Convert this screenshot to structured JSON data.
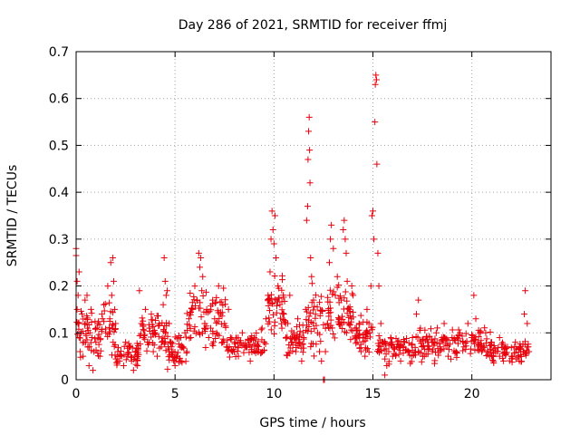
{
  "chart_data": {
    "type": "scatter",
    "title": "Day 286 of 2021, SRMTID for receiver ffmj",
    "xlabel": "GPS time / hours",
    "ylabel": "SRMTID / TECUs",
    "xlim": [
      0,
      24
    ],
    "ylim": [
      0,
      0.7
    ],
    "x_ticks": [
      0,
      5,
      10,
      15,
      20
    ],
    "x_tick_labels": [
      "0",
      "5",
      "10",
      "15",
      "20"
    ],
    "y_ticks": [
      0,
      0.1,
      0.2,
      0.3,
      0.4,
      0.5,
      0.6,
      0.7
    ],
    "y_tick_labels": [
      "0",
      "0.1",
      "0.2",
      "0.3",
      "0.4",
      "0.5",
      "0.6",
      "0.7"
    ],
    "grid": true,
    "marker": "plus",
    "color": "#e8000b",
    "series": [
      {
        "name": "SRMTID",
        "points": [
          [
            0.0,
            0.28
          ],
          [
            0.0,
            0.265
          ],
          [
            0.05,
            0.21
          ],
          [
            0.05,
            0.15
          ],
          [
            0.1,
            0.18
          ],
          [
            0.1,
            0.12
          ],
          [
            0.15,
            0.09
          ],
          [
            0.15,
            0.23
          ],
          [
            0.2,
            0.06
          ],
          [
            0.25,
            0.1
          ],
          [
            0.3,
            0.14
          ],
          [
            0.35,
            0.05
          ],
          [
            0.4,
            0.08
          ],
          [
            0.45,
            0.17
          ],
          [
            0.5,
            0.12
          ],
          [
            0.55,
            0.18
          ],
          [
            0.6,
            0.07
          ],
          [
            0.65,
            0.03
          ],
          [
            0.7,
            0.1
          ],
          [
            0.75,
            0.15
          ],
          [
            0.8,
            0.09
          ],
          [
            0.85,
            0.02
          ],
          [
            0.9,
            0.06
          ],
          [
            1.0,
            0.08
          ],
          [
            1.1,
            0.12
          ],
          [
            1.2,
            0.05
          ],
          [
            1.3,
            0.14
          ],
          [
            1.4,
            0.16
          ],
          [
            1.5,
            0.1
          ],
          [
            1.6,
            0.2
          ],
          [
            1.7,
            0.13
          ],
          [
            1.75,
            0.25
          ],
          [
            1.8,
            0.18
          ],
          [
            1.85,
            0.26
          ],
          [
            1.9,
            0.21
          ],
          [
            1.95,
            0.15
          ],
          [
            2.0,
            0.12
          ],
          [
            2.1,
            0.06
          ],
          [
            2.2,
            0.04
          ],
          [
            2.3,
            0.05
          ],
          [
            2.4,
            0.03
          ],
          [
            2.5,
            0.08
          ],
          [
            2.6,
            0.05
          ],
          [
            2.7,
            0.07
          ],
          [
            2.8,
            0.04
          ],
          [
            2.9,
            0.02
          ],
          [
            3.0,
            0.06
          ],
          [
            3.1,
            0.03
          ],
          [
            3.2,
            0.19
          ],
          [
            3.3,
            0.12
          ],
          [
            3.4,
            0.09
          ],
          [
            3.5,
            0.15
          ],
          [
            3.6,
            0.08
          ],
          [
            3.7,
            0.11
          ],
          [
            3.8,
            0.14
          ],
          [
            3.9,
            0.06
          ],
          [
            4.0,
            0.1
          ],
          [
            4.1,
            0.05
          ],
          [
            4.2,
            0.12
          ],
          [
            4.3,
            0.07
          ],
          [
            4.4,
            0.16
          ],
          [
            4.45,
            0.26
          ],
          [
            4.5,
            0.21
          ],
          [
            4.55,
            0.18
          ],
          [
            4.6,
            0.19
          ],
          [
            4.7,
            0.12
          ],
          [
            4.8,
            0.08
          ],
          [
            4.9,
            0.06
          ],
          [
            5.0,
            0.03
          ],
          [
            5.1,
            0.05
          ],
          [
            5.2,
            0.09
          ],
          [
            5.3,
            0.04
          ],
          [
            5.4,
            0.07
          ],
          [
            5.5,
            0.1
          ],
          [
            5.6,
            0.06
          ],
          [
            5.7,
            0.13
          ],
          [
            5.8,
            0.09
          ],
          [
            5.9,
            0.15
          ],
          [
            6.0,
            0.2
          ],
          [
            6.1,
            0.17
          ],
          [
            6.2,
            0.27
          ],
          [
            6.25,
            0.24
          ],
          [
            6.3,
            0.26
          ],
          [
            6.35,
            0.19
          ],
          [
            6.4,
            0.22
          ],
          [
            6.5,
            0.12
          ],
          [
            6.6,
            0.15
          ],
          [
            6.7,
            0.09
          ],
          [
            6.8,
            0.11
          ],
          [
            6.9,
            0.17
          ],
          [
            7.0,
            0.13
          ],
          [
            7.1,
            0.1
          ],
          [
            7.2,
            0.2
          ],
          [
            7.3,
            0.14
          ],
          [
            7.4,
            0.08
          ],
          [
            7.5,
            0.12
          ],
          [
            7.6,
            0.07
          ],
          [
            7.7,
            0.15
          ],
          [
            7.8,
            0.09
          ],
          [
            7.9,
            0.06
          ],
          [
            8.0,
            0.08
          ],
          [
            8.2,
            0.05
          ],
          [
            8.4,
            0.1
          ],
          [
            8.6,
            0.07
          ],
          [
            8.8,
            0.04
          ],
          [
            9.0,
            0.09
          ],
          [
            9.2,
            0.06
          ],
          [
            9.4,
            0.11
          ],
          [
            9.5,
            0.08
          ],
          [
            9.6,
            0.13
          ],
          [
            9.7,
            0.18
          ],
          [
            9.8,
            0.23
          ],
          [
            9.85,
            0.3
          ],
          [
            9.9,
            0.36
          ],
          [
            9.95,
            0.32
          ],
          [
            10.0,
            0.29
          ],
          [
            10.05,
            0.35
          ],
          [
            10.1,
            0.26
          ],
          [
            10.2,
            0.2
          ],
          [
            10.3,
            0.16
          ],
          [
            10.4,
            0.11
          ],
          [
            10.5,
            0.14
          ],
          [
            10.6,
            0.09
          ],
          [
            10.7,
            0.12
          ],
          [
            10.8,
            0.18
          ],
          [
            10.9,
            0.08
          ],
          [
            11.0,
            0.1
          ],
          [
            11.1,
            0.06
          ],
          [
            11.2,
            0.13
          ],
          [
            11.3,
            0.08
          ],
          [
            11.4,
            0.04
          ],
          [
            11.5,
            0.09
          ],
          [
            11.6,
            0.15
          ],
          [
            11.65,
            0.34
          ],
          [
            11.7,
            0.37
          ],
          [
            11.72,
            0.47
          ],
          [
            11.75,
            0.53
          ],
          [
            11.78,
            0.56
          ],
          [
            11.8,
            0.49
          ],
          [
            11.82,
            0.42
          ],
          [
            11.85,
            0.26
          ],
          [
            11.9,
            0.22
          ],
          [
            12.0,
            0.17
          ],
          [
            12.1,
            0.14
          ],
          [
            12.2,
            0.1
          ],
          [
            12.3,
            0.06
          ],
          [
            12.4,
            0.04
          ],
          [
            12.5,
            0.0
          ],
          [
            12.55,
            0.0
          ],
          [
            12.6,
            0.06
          ],
          [
            12.7,
            0.12
          ],
          [
            12.8,
            0.25
          ],
          [
            12.85,
            0.3
          ],
          [
            12.9,
            0.33
          ],
          [
            13.0,
            0.28
          ],
          [
            13.1,
            0.18
          ],
          [
            13.2,
            0.22
          ],
          [
            13.3,
            0.13
          ],
          [
            13.4,
            0.17
          ],
          [
            13.5,
            0.32
          ],
          [
            13.55,
            0.34
          ],
          [
            13.6,
            0.3
          ],
          [
            13.65,
            0.27
          ],
          [
            13.7,
            0.21
          ],
          [
            13.8,
            0.15
          ],
          [
            13.9,
            0.13
          ],
          [
            14.0,
            0.18
          ],
          [
            14.1,
            0.11
          ],
          [
            14.2,
            0.08
          ],
          [
            14.3,
            0.12
          ],
          [
            14.4,
            0.06
          ],
          [
            14.5,
            0.09
          ],
          [
            14.6,
            0.05
          ],
          [
            14.7,
            0.15
          ],
          [
            14.8,
            0.12
          ],
          [
            14.9,
            0.2
          ],
          [
            14.95,
            0.35
          ],
          [
            15.0,
            0.36
          ],
          [
            15.05,
            0.3
          ],
          [
            15.1,
            0.55
          ],
          [
            15.12,
            0.63
          ],
          [
            15.15,
            0.65
          ],
          [
            15.18,
            0.64
          ],
          [
            15.2,
            0.46
          ],
          [
            15.25,
            0.27
          ],
          [
            15.3,
            0.2
          ],
          [
            15.4,
            0.12
          ],
          [
            15.5,
            0.08
          ],
          [
            15.6,
            0.01
          ],
          [
            15.7,
            0.03
          ],
          [
            15.8,
            0.06
          ],
          [
            15.9,
            0.09
          ],
          [
            16.0,
            0.05
          ],
          [
            16.2,
            0.07
          ],
          [
            16.4,
            0.04
          ],
          [
            16.6,
            0.08
          ],
          [
            16.8,
            0.06
          ],
          [
            17.0,
            0.09
          ],
          [
            17.2,
            0.14
          ],
          [
            17.3,
            0.17
          ],
          [
            17.4,
            0.11
          ],
          [
            17.5,
            0.07
          ],
          [
            17.6,
            0.05
          ],
          [
            17.8,
            0.08
          ],
          [
            18.0,
            0.06
          ],
          [
            18.2,
            0.1
          ],
          [
            18.4,
            0.07
          ],
          [
            18.6,
            0.12
          ],
          [
            18.8,
            0.05
          ],
          [
            19.0,
            0.09
          ],
          [
            19.2,
            0.06
          ],
          [
            19.4,
            0.1
          ],
          [
            19.6,
            0.07
          ],
          [
            19.8,
            0.12
          ],
          [
            20.0,
            0.09
          ],
          [
            20.1,
            0.18
          ],
          [
            20.2,
            0.13
          ],
          [
            20.3,
            0.08
          ],
          [
            20.5,
            0.06
          ],
          [
            20.7,
            0.1
          ],
          [
            20.9,
            0.05
          ],
          [
            21.0,
            0.08
          ],
          [
            21.2,
            0.06
          ],
          [
            21.4,
            0.09
          ],
          [
            21.6,
            0.04
          ],
          [
            21.8,
            0.07
          ],
          [
            22.0,
            0.05
          ],
          [
            22.2,
            0.08
          ],
          [
            22.4,
            0.04
          ],
          [
            22.6,
            0.06
          ],
          [
            22.65,
            0.14
          ],
          [
            22.7,
            0.19
          ],
          [
            22.8,
            0.12
          ],
          [
            22.85,
            0.07
          ]
        ]
      }
    ],
    "dense_clusters": [
      {
        "x_range": [
          0.0,
          2.0
        ],
        "y_center": 0.1,
        "y_spread": 0.05,
        "count": 70
      },
      {
        "x_range": [
          2.0,
          3.2
        ],
        "y_center": 0.055,
        "y_spread": 0.025,
        "count": 40
      },
      {
        "x_range": [
          3.2,
          4.6
        ],
        "y_center": 0.1,
        "y_spread": 0.045,
        "count": 55
      },
      {
        "x_range": [
          4.6,
          5.6
        ],
        "y_center": 0.06,
        "y_spread": 0.03,
        "count": 40
      },
      {
        "x_range": [
          5.6,
          7.6
        ],
        "y_center": 0.13,
        "y_spread": 0.05,
        "count": 75
      },
      {
        "x_range": [
          7.6,
          9.6
        ],
        "y_center": 0.075,
        "y_spread": 0.025,
        "count": 70
      },
      {
        "x_range": [
          9.6,
          10.6
        ],
        "y_center": 0.15,
        "y_spread": 0.07,
        "count": 45
      },
      {
        "x_range": [
          10.6,
          11.6
        ],
        "y_center": 0.085,
        "y_spread": 0.03,
        "count": 40
      },
      {
        "x_range": [
          11.6,
          12.5
        ],
        "y_center": 0.13,
        "y_spread": 0.06,
        "count": 40
      },
      {
        "x_range": [
          12.6,
          14.0
        ],
        "y_center": 0.15,
        "y_spread": 0.06,
        "count": 60
      },
      {
        "x_range": [
          14.0,
          15.0
        ],
        "y_center": 0.09,
        "y_spread": 0.035,
        "count": 40
      },
      {
        "x_range": [
          15.2,
          17.0
        ],
        "y_center": 0.065,
        "y_spread": 0.025,
        "count": 65
      },
      {
        "x_range": [
          17.0,
          19.0
        ],
        "y_center": 0.075,
        "y_spread": 0.03,
        "count": 70
      },
      {
        "x_range": [
          19.0,
          21.0
        ],
        "y_center": 0.08,
        "y_spread": 0.03,
        "count": 70
      },
      {
        "x_range": [
          21.0,
          22.9
        ],
        "y_center": 0.06,
        "y_spread": 0.022,
        "count": 65
      }
    ]
  }
}
